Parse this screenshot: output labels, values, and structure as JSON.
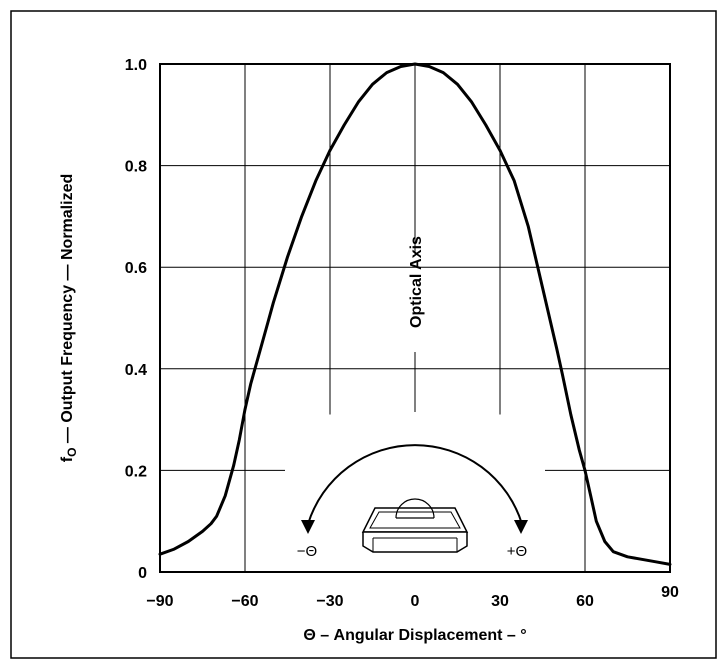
{
  "chart_data": {
    "type": "line",
    "title": "",
    "xlabel": "Θ – Angular Displacement – °",
    "ylabel_main": "f",
    "ylabel_sub": "O",
    "ylabel_rest": " — Output Frequency — Normalized",
    "xlim": [
      -90,
      90
    ],
    "ylim": [
      0,
      1.0
    ],
    "x_ticks": [
      -90,
      -60,
      -30,
      0,
      30,
      60,
      90
    ],
    "x_tick_labels": [
      "−90",
      "−60",
      "−30",
      "0",
      "30",
      "60",
      "90"
    ],
    "y_ticks": [
      0,
      0.2,
      0.4,
      0.6,
      0.8,
      1.0
    ],
    "y_tick_labels": [
      "0",
      "0.2",
      "0.4",
      "0.6",
      "0.8",
      "1.0"
    ],
    "grid": true,
    "series": [
      {
        "x": [
          -90,
          -85,
          -80,
          -75,
          -72,
          -70,
          -67,
          -64,
          -62,
          -60,
          -58,
          -55,
          -52,
          -50,
          -45,
          -40,
          -35,
          -30,
          -25,
          -20,
          -15,
          -10,
          -5,
          0,
          5,
          10,
          15,
          20,
          25,
          30,
          35,
          40,
          45,
          50,
          52,
          55,
          58,
          60,
          62,
          64,
          67,
          70,
          75,
          80,
          85,
          90
        ],
        "y": [
          0.035,
          0.045,
          0.06,
          0.08,
          0.095,
          0.11,
          0.15,
          0.21,
          0.26,
          0.32,
          0.37,
          0.43,
          0.49,
          0.53,
          0.62,
          0.7,
          0.77,
          0.83,
          0.88,
          0.925,
          0.96,
          0.983,
          0.995,
          1.0,
          0.995,
          0.983,
          0.96,
          0.925,
          0.88,
          0.83,
          0.77,
          0.68,
          0.56,
          0.44,
          0.39,
          0.31,
          0.24,
          0.2,
          0.15,
          0.1,
          0.06,
          0.04,
          0.03,
          0.025,
          0.02,
          0.015
        ]
      }
    ],
    "annotations": {
      "optical_axis": "Optical Axis",
      "minus_theta": "−Θ",
      "plus_theta": "+Θ"
    }
  }
}
